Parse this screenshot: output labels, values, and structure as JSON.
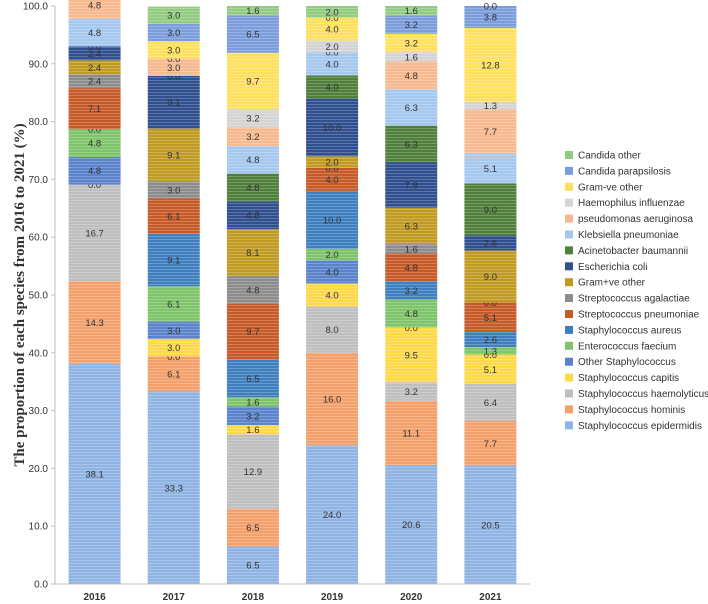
{
  "chart_data": {
    "type": "bar",
    "stacked": true,
    "title": "",
    "xlabel": "",
    "ylabel": "The proportion of each species from 2016 to 2021 (%)",
    "ylim": [
      0,
      100
    ],
    "yticks": [
      "0.0",
      "10.0",
      "20.0",
      "30.0",
      "40.0",
      "50.0",
      "60.0",
      "70.0",
      "80.0",
      "90.0",
      "100.0"
    ],
    "categories": [
      "2016",
      "2017",
      "2018",
      "2019",
      "2020",
      "2021"
    ],
    "legend_position": "right",
    "series": [
      {
        "name": "Staphylococcus epidermidis",
        "color": "#8fb4e3",
        "values": [
          38.1,
          33.3,
          6.5,
          24.0,
          20.6,
          20.5
        ]
      },
      {
        "name": "Staphylococcus hominis",
        "color": "#f4a06a",
        "values": [
          14.3,
          6.1,
          6.5,
          16.0,
          11.1,
          7.7
        ]
      },
      {
        "name": "Staphylococcus haemolyticus",
        "color": "#bfbfbf",
        "values": [
          16.7,
          0.0,
          12.9,
          8.0,
          3.2,
          6.4
        ]
      },
      {
        "name": "Staphylococcus capitis",
        "color": "#fdd94a",
        "values": [
          0.0,
          3.0,
          1.6,
          4.0,
          9.5,
          5.1
        ]
      },
      {
        "name": "Other Staphylococcus",
        "color": "#5b83cc",
        "values": [
          4.8,
          3.0,
          3.2,
          4.0,
          0.0,
          0.0
        ]
      },
      {
        "name": "Enterococcus faecium",
        "color": "#7ec46a",
        "values": [
          4.8,
          6.1,
          1.6,
          2.0,
          4.8,
          1.3
        ]
      },
      {
        "name": "Staphylococcus aureus",
        "color": "#3f7fbf",
        "values": [
          0.0,
          9.1,
          6.5,
          10.0,
          3.2,
          2.6
        ]
      },
      {
        "name": "Streptococcus pneumoniae",
        "color": "#c65a28",
        "values": [
          7.1,
          6.1,
          9.7,
          4.0,
          4.8,
          5.1
        ]
      },
      {
        "name": "Streptococcus agalactiae",
        "color": "#8c8c8c",
        "values": [
          2.4,
          3.0,
          4.8,
          0.0,
          1.6,
          0.0
        ]
      },
      {
        "name": "Gram+ve other",
        "color": "#c09a22",
        "values": [
          2.4,
          9.1,
          8.1,
          2.0,
          6.3,
          9.0
        ]
      },
      {
        "name": "Escherichia coli",
        "color": "#2f4f8f",
        "values": [
          2.4,
          9.1,
          4.8,
          10.0,
          7.9,
          2.6
        ]
      },
      {
        "name": "Acinetobacter baumannii",
        "color": "#4f7f3a",
        "values": [
          0.0,
          0.0,
          4.8,
          4.0,
          6.3,
          9.0
        ]
      },
      {
        "name": "Klebsiella pneumoniae",
        "color": "#a4c8ee",
        "values": [
          4.8,
          0.0,
          4.8,
          4.0,
          6.3,
          5.1
        ]
      },
      {
        "name": "pseudomonas aeruginosa",
        "color": "#f7b98f",
        "values": [
          4.8,
          3.0,
          3.2,
          0.0,
          4.8,
          7.7
        ]
      },
      {
        "name": "Haemophilus influenzae",
        "color": "#d4d4d4",
        "values": [
          0.0,
          0.0,
          3.2,
          2.0,
          1.6,
          1.3
        ]
      },
      {
        "name": "Gram-ve other",
        "color": "#fee060",
        "values": [
          2.4,
          3.0,
          9.7,
          4.0,
          3.2,
          12.8
        ]
      },
      {
        "name": "Candida parapsilosis",
        "color": "#7c9ddb",
        "values": [
          0.0,
          3.0,
          6.5,
          0.0,
          3.2,
          3.8
        ]
      },
      {
        "name": "Candida other",
        "color": "#93cc80",
        "values": [
          0.0,
          3.0,
          1.6,
          2.0,
          1.6,
          0.0
        ]
      }
    ]
  }
}
